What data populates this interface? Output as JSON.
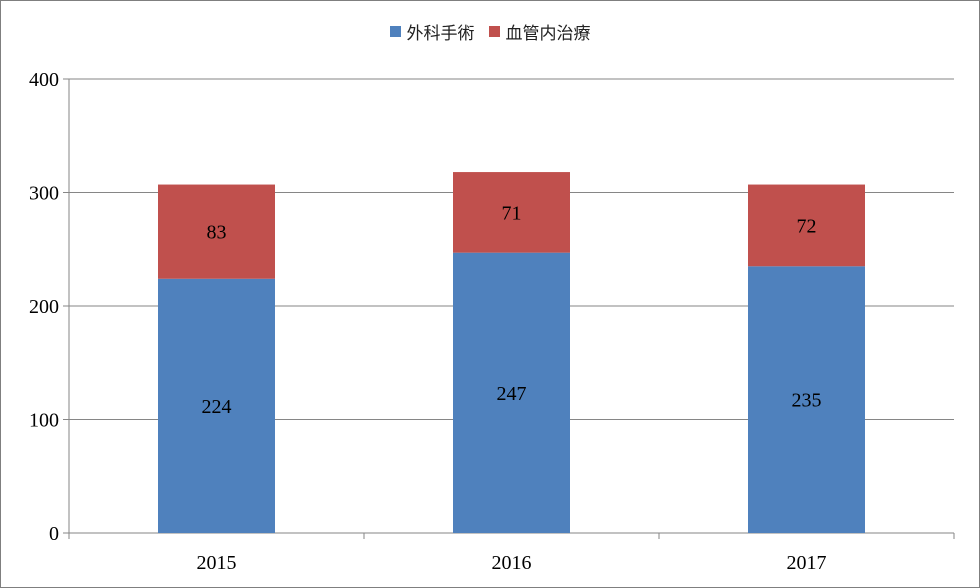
{
  "chart_data": {
    "type": "bar",
    "stacked": true,
    "categories": [
      "2015",
      "2016",
      "2017"
    ],
    "series": [
      {
        "name": "外科手術",
        "values": [
          224,
          247,
          235
        ],
        "color": "#4f81bd"
      },
      {
        "name": "血管内治療",
        "values": [
          83,
          71,
          72
        ],
        "color": "#c0504d"
      }
    ],
    "ylim": [
      0,
      400
    ],
    "yticks": [
      "0",
      "100",
      "200",
      "300",
      "400"
    ],
    "grid": true,
    "legend_position": "top-center",
    "data_labels": true
  }
}
